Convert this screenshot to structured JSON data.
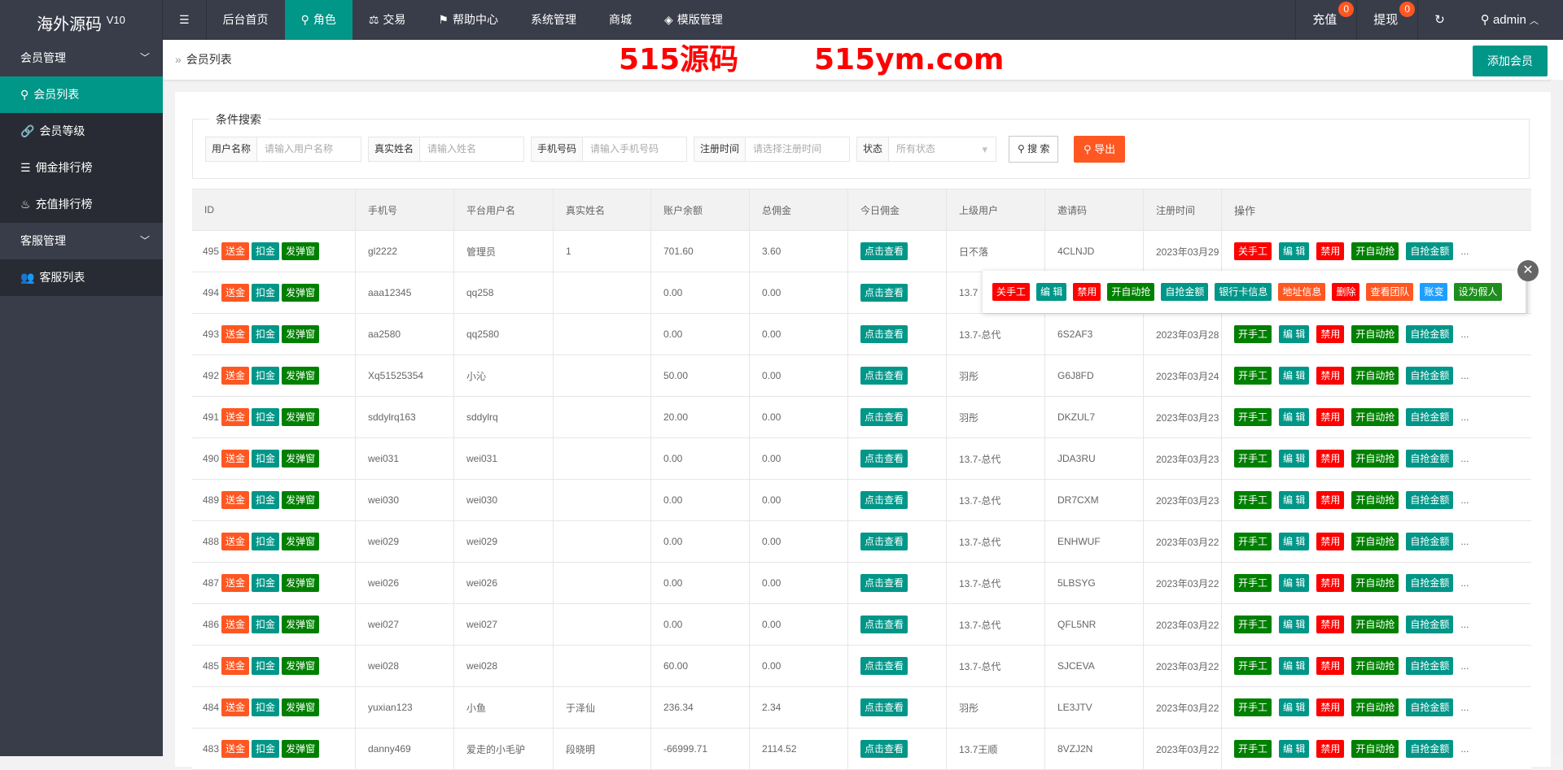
{
  "header": {
    "logo": "海外源码",
    "version": "V10",
    "nav": [
      {
        "label": "后台首页",
        "icon": ""
      },
      {
        "label": "角色",
        "icon": "user-icon",
        "active": true
      },
      {
        "label": "交易",
        "icon": "scale-icon"
      },
      {
        "label": "帮助中心",
        "icon": "flag-icon"
      },
      {
        "label": "系统管理",
        "icon": ""
      },
      {
        "label": "商城",
        "icon": ""
      },
      {
        "label": "模版管理",
        "icon": "layers-icon"
      }
    ],
    "recharge": "充值",
    "recharge_count": "0",
    "withdraw": "提现",
    "withdraw_count": "0",
    "user": "admin"
  },
  "sidebar": {
    "groups": [
      {
        "label": "会员管理",
        "items": [
          {
            "label": "会员列表",
            "icon": "user-icon",
            "active": true
          },
          {
            "label": "会员等级",
            "icon": "link-icon"
          },
          {
            "label": "佣金排行榜",
            "icon": "list-icon"
          },
          {
            "label": "充值排行榜",
            "icon": "fire-icon"
          }
        ]
      },
      {
        "label": "客服管理",
        "items": [
          {
            "label": "客服列表",
            "icon": "users-icon"
          }
        ]
      }
    ]
  },
  "breadcrumb": "会员列表",
  "add_button": "添加会员",
  "search": {
    "legend": "条件搜索",
    "fields": [
      {
        "label": "用户名称",
        "placeholder": "请输入用户名称"
      },
      {
        "label": "真实姓名",
        "placeholder": "请输入姓名"
      },
      {
        "label": "手机号码",
        "placeholder": "请输入手机号码"
      },
      {
        "label": "注册时间",
        "placeholder": "请选择注册时间"
      },
      {
        "label": "状态",
        "placeholder": "所有状态"
      }
    ],
    "search_btn": "搜 索",
    "export_btn": "导出"
  },
  "table": {
    "columns": [
      "ID",
      "手机号",
      "平台用户名",
      "真实姓名",
      "账户余额",
      "总佣金",
      "今日佣金",
      "上级用户",
      "邀请码",
      "注册时间",
      "操作"
    ],
    "id_actions": [
      "送金",
      "扣金",
      "发弹窗"
    ],
    "view_label": "点击查看",
    "row_ops_first": [
      "关手工",
      "编 辑",
      "禁用",
      "开自动抢",
      "自抢金额"
    ],
    "row_ops": [
      "开手工",
      "编 辑",
      "禁用",
      "开自动抢",
      "自抢金额"
    ],
    "more": "...",
    "rows": [
      [
        "495",
        "gl2222",
        "管理员",
        "1",
        "701.60",
        "3.60",
        "日不落",
        "4CLNJD",
        "2023年03月29"
      ],
      [
        "494",
        "aaa12345",
        "qq258",
        "",
        "0.00",
        "0.00",
        "13.7",
        "",
        ""
      ],
      [
        "493",
        "aa2580",
        "qq2580",
        "",
        "0.00",
        "0.00",
        "13.7-总代",
        "6S2AF3",
        "2023年03月28"
      ],
      [
        "492",
        "Xq51525354",
        "小沁",
        "",
        "50.00",
        "0.00",
        "羽彤",
        "G6J8FD",
        "2023年03月24"
      ],
      [
        "491",
        "sddylrq163",
        "sddylrq",
        "",
        "20.00",
        "0.00",
        "羽彤",
        "DKZUL7",
        "2023年03月23"
      ],
      [
        "490",
        "wei031",
        "wei031",
        "",
        "0.00",
        "0.00",
        "13.7-总代",
        "JDA3RU",
        "2023年03月23"
      ],
      [
        "489",
        "wei030",
        "wei030",
        "",
        "0.00",
        "0.00",
        "13.7-总代",
        "DR7CXM",
        "2023年03月23"
      ],
      [
        "488",
        "wei029",
        "wei029",
        "",
        "0.00",
        "0.00",
        "13.7-总代",
        "ENHWUF",
        "2023年03月22"
      ],
      [
        "487",
        "wei026",
        "wei026",
        "",
        "0.00",
        "0.00",
        "13.7-总代",
        "5LBSYG",
        "2023年03月22"
      ],
      [
        "486",
        "wei027",
        "wei027",
        "",
        "0.00",
        "0.00",
        "13.7-总代",
        "QFL5NR",
        "2023年03月22"
      ],
      [
        "485",
        "wei028",
        "wei028",
        "",
        "60.00",
        "0.00",
        "13.7-总代",
        "SJCEVA",
        "2023年03月22"
      ],
      [
        "484",
        "yuxian123",
        "小鱼",
        "于泽仙",
        "236.34",
        "2.34",
        "羽彤",
        "LE3JTV",
        "2023年03月22"
      ],
      [
        "483",
        "danny469",
        "爱走的小毛驴",
        "段晓明",
        "-66999.71",
        "2114.52",
        "13.7王顺",
        "8VZJ2N",
        "2023年03月22"
      ]
    ]
  },
  "popup": {
    "actions": [
      "关手工",
      "编 辑",
      "禁用",
      "开自动抢",
      "自抢金额",
      "银行卡信息",
      "地址信息",
      "删除",
      "查看团队",
      "账变",
      "设为假人"
    ]
  },
  "watermark": [
    "515源码",
    "515ym.com"
  ],
  "colors": {
    "header": "#393d49",
    "accent": "#009688",
    "danger": "#ff0000",
    "warm": "#ff5722",
    "green": "#008000",
    "blue": "#1e9fff"
  }
}
